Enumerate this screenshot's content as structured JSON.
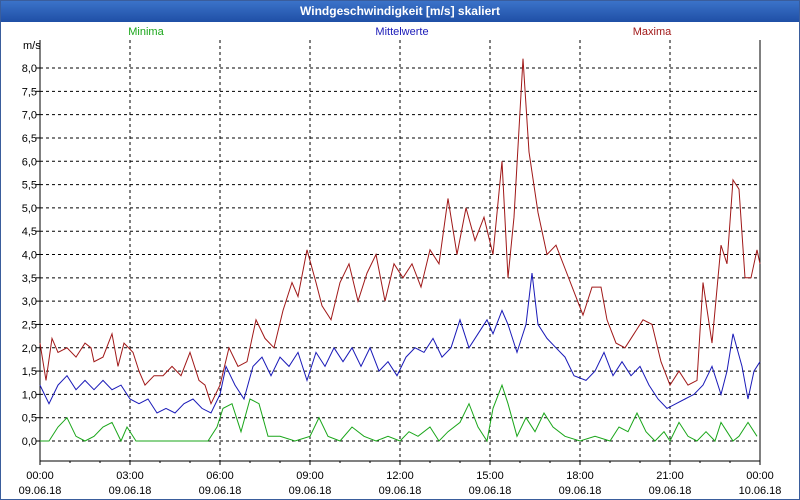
{
  "window_title": "Windgeschwindigkeit [m/s] skaliert",
  "colors": {
    "minima": "#1aa61a",
    "mittelwerte": "#1a1ab8",
    "maxima": "#a01818",
    "grid": "#000000"
  },
  "chart_data": {
    "type": "line",
    "ylabel": "m/s",
    "ylim": [
      0,
      8.5
    ],
    "y_ticks": [
      "0,0",
      "0,5",
      "1,0",
      "1,5",
      "2,0",
      "2,5",
      "3,0",
      "3,5",
      "4,0",
      "4,5",
      "5,0",
      "5,5",
      "6,0",
      "6,5",
      "7,0",
      "7,5",
      "8,0"
    ],
    "x_ticks": [
      {
        "time": "00:00",
        "date": "09.06.18"
      },
      {
        "time": "03:00",
        "date": "09.06.18"
      },
      {
        "time": "06:00",
        "date": "09.06.18"
      },
      {
        "time": "09:00",
        "date": "09.06.18"
      },
      {
        "time": "12:00",
        "date": "09.06.18"
      },
      {
        "time": "15:00",
        "date": "09.06.18"
      },
      {
        "time": "18:00",
        "date": "09.06.18"
      },
      {
        "time": "21:00",
        "date": "09.06.18"
      },
      {
        "time": "00:00",
        "date": "10.06.18"
      }
    ],
    "xlim_hours": [
      0,
      24
    ],
    "grid": true,
    "legend": [
      "Minima",
      "Mittelwerte",
      "Maxima"
    ],
    "series": [
      {
        "name": "Minima",
        "color": "#1aa61a",
        "points": [
          [
            0.0,
            0.0
          ],
          [
            0.3,
            0.0
          ],
          [
            0.6,
            0.3
          ],
          [
            0.9,
            0.5
          ],
          [
            1.2,
            0.1
          ],
          [
            1.5,
            0.0
          ],
          [
            1.8,
            0.1
          ],
          [
            2.1,
            0.3
          ],
          [
            2.4,
            0.4
          ],
          [
            2.7,
            0.0
          ],
          [
            2.9,
            0.3
          ],
          [
            3.2,
            0.0
          ],
          [
            4.0,
            0.0
          ],
          [
            5.0,
            0.0
          ],
          [
            5.6,
            0.0
          ],
          [
            5.9,
            0.3
          ],
          [
            6.1,
            0.7
          ],
          [
            6.4,
            0.8
          ],
          [
            6.7,
            0.2
          ],
          [
            7.0,
            0.9
          ],
          [
            7.3,
            0.8
          ],
          [
            7.6,
            0.1
          ],
          [
            8.0,
            0.1
          ],
          [
            8.5,
            0.0
          ],
          [
            9.0,
            0.1
          ],
          [
            9.3,
            0.5
          ],
          [
            9.6,
            0.1
          ],
          [
            10.0,
            0.0
          ],
          [
            10.4,
            0.3
          ],
          [
            10.8,
            0.1
          ],
          [
            11.2,
            0.0
          ],
          [
            11.6,
            0.1
          ],
          [
            12.0,
            0.0
          ],
          [
            12.3,
            0.2
          ],
          [
            12.6,
            0.1
          ],
          [
            13.0,
            0.3
          ],
          [
            13.3,
            0.0
          ],
          [
            13.6,
            0.2
          ],
          [
            14.0,
            0.4
          ],
          [
            14.3,
            0.8
          ],
          [
            14.6,
            0.3
          ],
          [
            14.9,
            0.0
          ],
          [
            15.1,
            0.7
          ],
          [
            15.4,
            1.2
          ],
          [
            15.6,
            0.8
          ],
          [
            15.9,
            0.1
          ],
          [
            16.2,
            0.5
          ],
          [
            16.5,
            0.2
          ],
          [
            16.8,
            0.6
          ],
          [
            17.1,
            0.3
          ],
          [
            17.5,
            0.1
          ],
          [
            18.0,
            0.0
          ],
          [
            18.5,
            0.1
          ],
          [
            19.0,
            0.0
          ],
          [
            19.3,
            0.3
          ],
          [
            19.6,
            0.2
          ],
          [
            19.9,
            0.6
          ],
          [
            20.2,
            0.2
          ],
          [
            20.5,
            0.0
          ],
          [
            20.8,
            0.2
          ],
          [
            21.0,
            0.0
          ],
          [
            21.3,
            0.4
          ],
          [
            21.6,
            0.1
          ],
          [
            21.9,
            0.0
          ],
          [
            22.2,
            0.2
          ],
          [
            22.5,
            0.0
          ],
          [
            22.7,
            0.4
          ],
          [
            22.9,
            0.2
          ],
          [
            23.1,
            0.0
          ],
          [
            23.3,
            0.1
          ],
          [
            23.6,
            0.4
          ],
          [
            23.9,
            0.1
          ]
        ]
      },
      {
        "name": "Mittelwerte",
        "color": "#1a1ab8",
        "points": [
          [
            0.0,
            1.2
          ],
          [
            0.3,
            0.8
          ],
          [
            0.6,
            1.2
          ],
          [
            0.9,
            1.4
          ],
          [
            1.2,
            1.1
          ],
          [
            1.5,
            1.3
          ],
          [
            1.8,
            1.1
          ],
          [
            2.1,
            1.3
          ],
          [
            2.4,
            1.1
          ],
          [
            2.7,
            1.2
          ],
          [
            3.0,
            0.9
          ],
          [
            3.3,
            0.8
          ],
          [
            3.6,
            0.9
          ],
          [
            3.9,
            0.6
          ],
          [
            4.2,
            0.7
          ],
          [
            4.5,
            0.6
          ],
          [
            4.8,
            0.8
          ],
          [
            5.1,
            0.9
          ],
          [
            5.4,
            0.7
          ],
          [
            5.7,
            0.6
          ],
          [
            6.0,
            1.0
          ],
          [
            6.2,
            1.6
          ],
          [
            6.5,
            1.2
          ],
          [
            6.8,
            0.9
          ],
          [
            7.1,
            1.6
          ],
          [
            7.4,
            1.8
          ],
          [
            7.7,
            1.4
          ],
          [
            8.0,
            1.8
          ],
          [
            8.3,
            1.6
          ],
          [
            8.6,
            1.9
          ],
          [
            8.9,
            1.3
          ],
          [
            9.2,
            1.9
          ],
          [
            9.5,
            1.6
          ],
          [
            9.8,
            2.0
          ],
          [
            10.1,
            1.7
          ],
          [
            10.4,
            2.0
          ],
          [
            10.7,
            1.6
          ],
          [
            11.0,
            2.0
          ],
          [
            11.3,
            1.5
          ],
          [
            11.6,
            1.7
          ],
          [
            11.9,
            1.4
          ],
          [
            12.2,
            1.8
          ],
          [
            12.5,
            2.0
          ],
          [
            12.8,
            1.9
          ],
          [
            13.1,
            2.2
          ],
          [
            13.4,
            1.8
          ],
          [
            13.7,
            2.0
          ],
          [
            14.0,
            2.6
          ],
          [
            14.3,
            2.0
          ],
          [
            14.6,
            2.3
          ],
          [
            14.9,
            2.6
          ],
          [
            15.1,
            2.3
          ],
          [
            15.4,
            2.8
          ],
          [
            15.6,
            2.5
          ],
          [
            15.9,
            1.9
          ],
          [
            16.2,
            2.5
          ],
          [
            16.4,
            3.6
          ],
          [
            16.6,
            2.5
          ],
          [
            16.9,
            2.2
          ],
          [
            17.2,
            2.0
          ],
          [
            17.5,
            1.8
          ],
          [
            17.8,
            1.4
          ],
          [
            18.2,
            1.3
          ],
          [
            18.5,
            1.5
          ],
          [
            18.8,
            1.9
          ],
          [
            19.1,
            1.4
          ],
          [
            19.4,
            1.7
          ],
          [
            19.7,
            1.4
          ],
          [
            20.0,
            1.6
          ],
          [
            20.3,
            1.2
          ],
          [
            20.6,
            0.9
          ],
          [
            20.9,
            0.7
          ],
          [
            21.2,
            0.8
          ],
          [
            21.5,
            0.9
          ],
          [
            21.8,
            1.0
          ],
          [
            22.1,
            1.2
          ],
          [
            22.4,
            1.6
          ],
          [
            22.7,
            1.0
          ],
          [
            22.9,
            1.5
          ],
          [
            23.1,
            2.3
          ],
          [
            23.4,
            1.6
          ],
          [
            23.6,
            0.9
          ],
          [
            23.8,
            1.5
          ],
          [
            24.0,
            1.7
          ]
        ]
      },
      {
        "name": "Maxima",
        "color": "#a01818",
        "points": [
          [
            0.0,
            2.1
          ],
          [
            0.2,
            1.3
          ],
          [
            0.4,
            2.2
          ],
          [
            0.6,
            1.9
          ],
          [
            0.9,
            2.0
          ],
          [
            1.2,
            1.8
          ],
          [
            1.5,
            2.1
          ],
          [
            1.7,
            2.0
          ],
          [
            1.8,
            1.7
          ],
          [
            2.1,
            1.8
          ],
          [
            2.4,
            2.3
          ],
          [
            2.6,
            1.6
          ],
          [
            2.8,
            2.1
          ],
          [
            3.1,
            1.9
          ],
          [
            3.3,
            1.5
          ],
          [
            3.5,
            1.2
          ],
          [
            3.8,
            1.4
          ],
          [
            4.1,
            1.4
          ],
          [
            4.4,
            1.6
          ],
          [
            4.7,
            1.4
          ],
          [
            5.0,
            1.9
          ],
          [
            5.3,
            1.3
          ],
          [
            5.5,
            1.2
          ],
          [
            5.7,
            0.8
          ],
          [
            6.0,
            1.2
          ],
          [
            6.3,
            2.0
          ],
          [
            6.6,
            1.6
          ],
          [
            6.9,
            1.7
          ],
          [
            7.2,
            2.6
          ],
          [
            7.5,
            2.2
          ],
          [
            7.8,
            2.0
          ],
          [
            8.1,
            2.8
          ],
          [
            8.4,
            3.4
          ],
          [
            8.6,
            3.1
          ],
          [
            8.9,
            4.1
          ],
          [
            9.2,
            3.4
          ],
          [
            9.4,
            2.9
          ],
          [
            9.7,
            2.6
          ],
          [
            10.0,
            3.4
          ],
          [
            10.3,
            3.8
          ],
          [
            10.6,
            3.0
          ],
          [
            10.9,
            3.6
          ],
          [
            11.2,
            4.0
          ],
          [
            11.5,
            3.0
          ],
          [
            11.8,
            3.8
          ],
          [
            12.1,
            3.5
          ],
          [
            12.4,
            3.8
          ],
          [
            12.7,
            3.3
          ],
          [
            13.0,
            4.1
          ],
          [
            13.3,
            3.8
          ],
          [
            13.6,
            5.2
          ],
          [
            13.9,
            4.0
          ],
          [
            14.2,
            5.0
          ],
          [
            14.5,
            4.3
          ],
          [
            14.8,
            4.8
          ],
          [
            15.1,
            4.0
          ],
          [
            15.4,
            6.0
          ],
          [
            15.6,
            3.5
          ],
          [
            15.8,
            4.8
          ],
          [
            16.1,
            8.2
          ],
          [
            16.3,
            6.2
          ],
          [
            16.6,
            4.9
          ],
          [
            16.9,
            4.0
          ],
          [
            17.2,
            4.2
          ],
          [
            17.5,
            3.7
          ],
          [
            17.8,
            3.2
          ],
          [
            18.1,
            2.7
          ],
          [
            18.4,
            3.3
          ],
          [
            18.7,
            3.3
          ],
          [
            18.9,
            2.6
          ],
          [
            19.2,
            2.1
          ],
          [
            19.5,
            2.0
          ],
          [
            19.8,
            2.3
          ],
          [
            20.1,
            2.6
          ],
          [
            20.4,
            2.5
          ],
          [
            20.7,
            1.7
          ],
          [
            21.0,
            1.2
          ],
          [
            21.3,
            1.5
          ],
          [
            21.6,
            1.2
          ],
          [
            21.9,
            1.3
          ],
          [
            22.1,
            3.4
          ],
          [
            22.4,
            2.1
          ],
          [
            22.7,
            4.2
          ],
          [
            22.9,
            3.8
          ],
          [
            23.1,
            5.6
          ],
          [
            23.3,
            5.4
          ],
          [
            23.5,
            3.5
          ],
          [
            23.7,
            3.5
          ],
          [
            23.9,
            4.1
          ],
          [
            24.0,
            3.8
          ]
        ]
      }
    ]
  }
}
